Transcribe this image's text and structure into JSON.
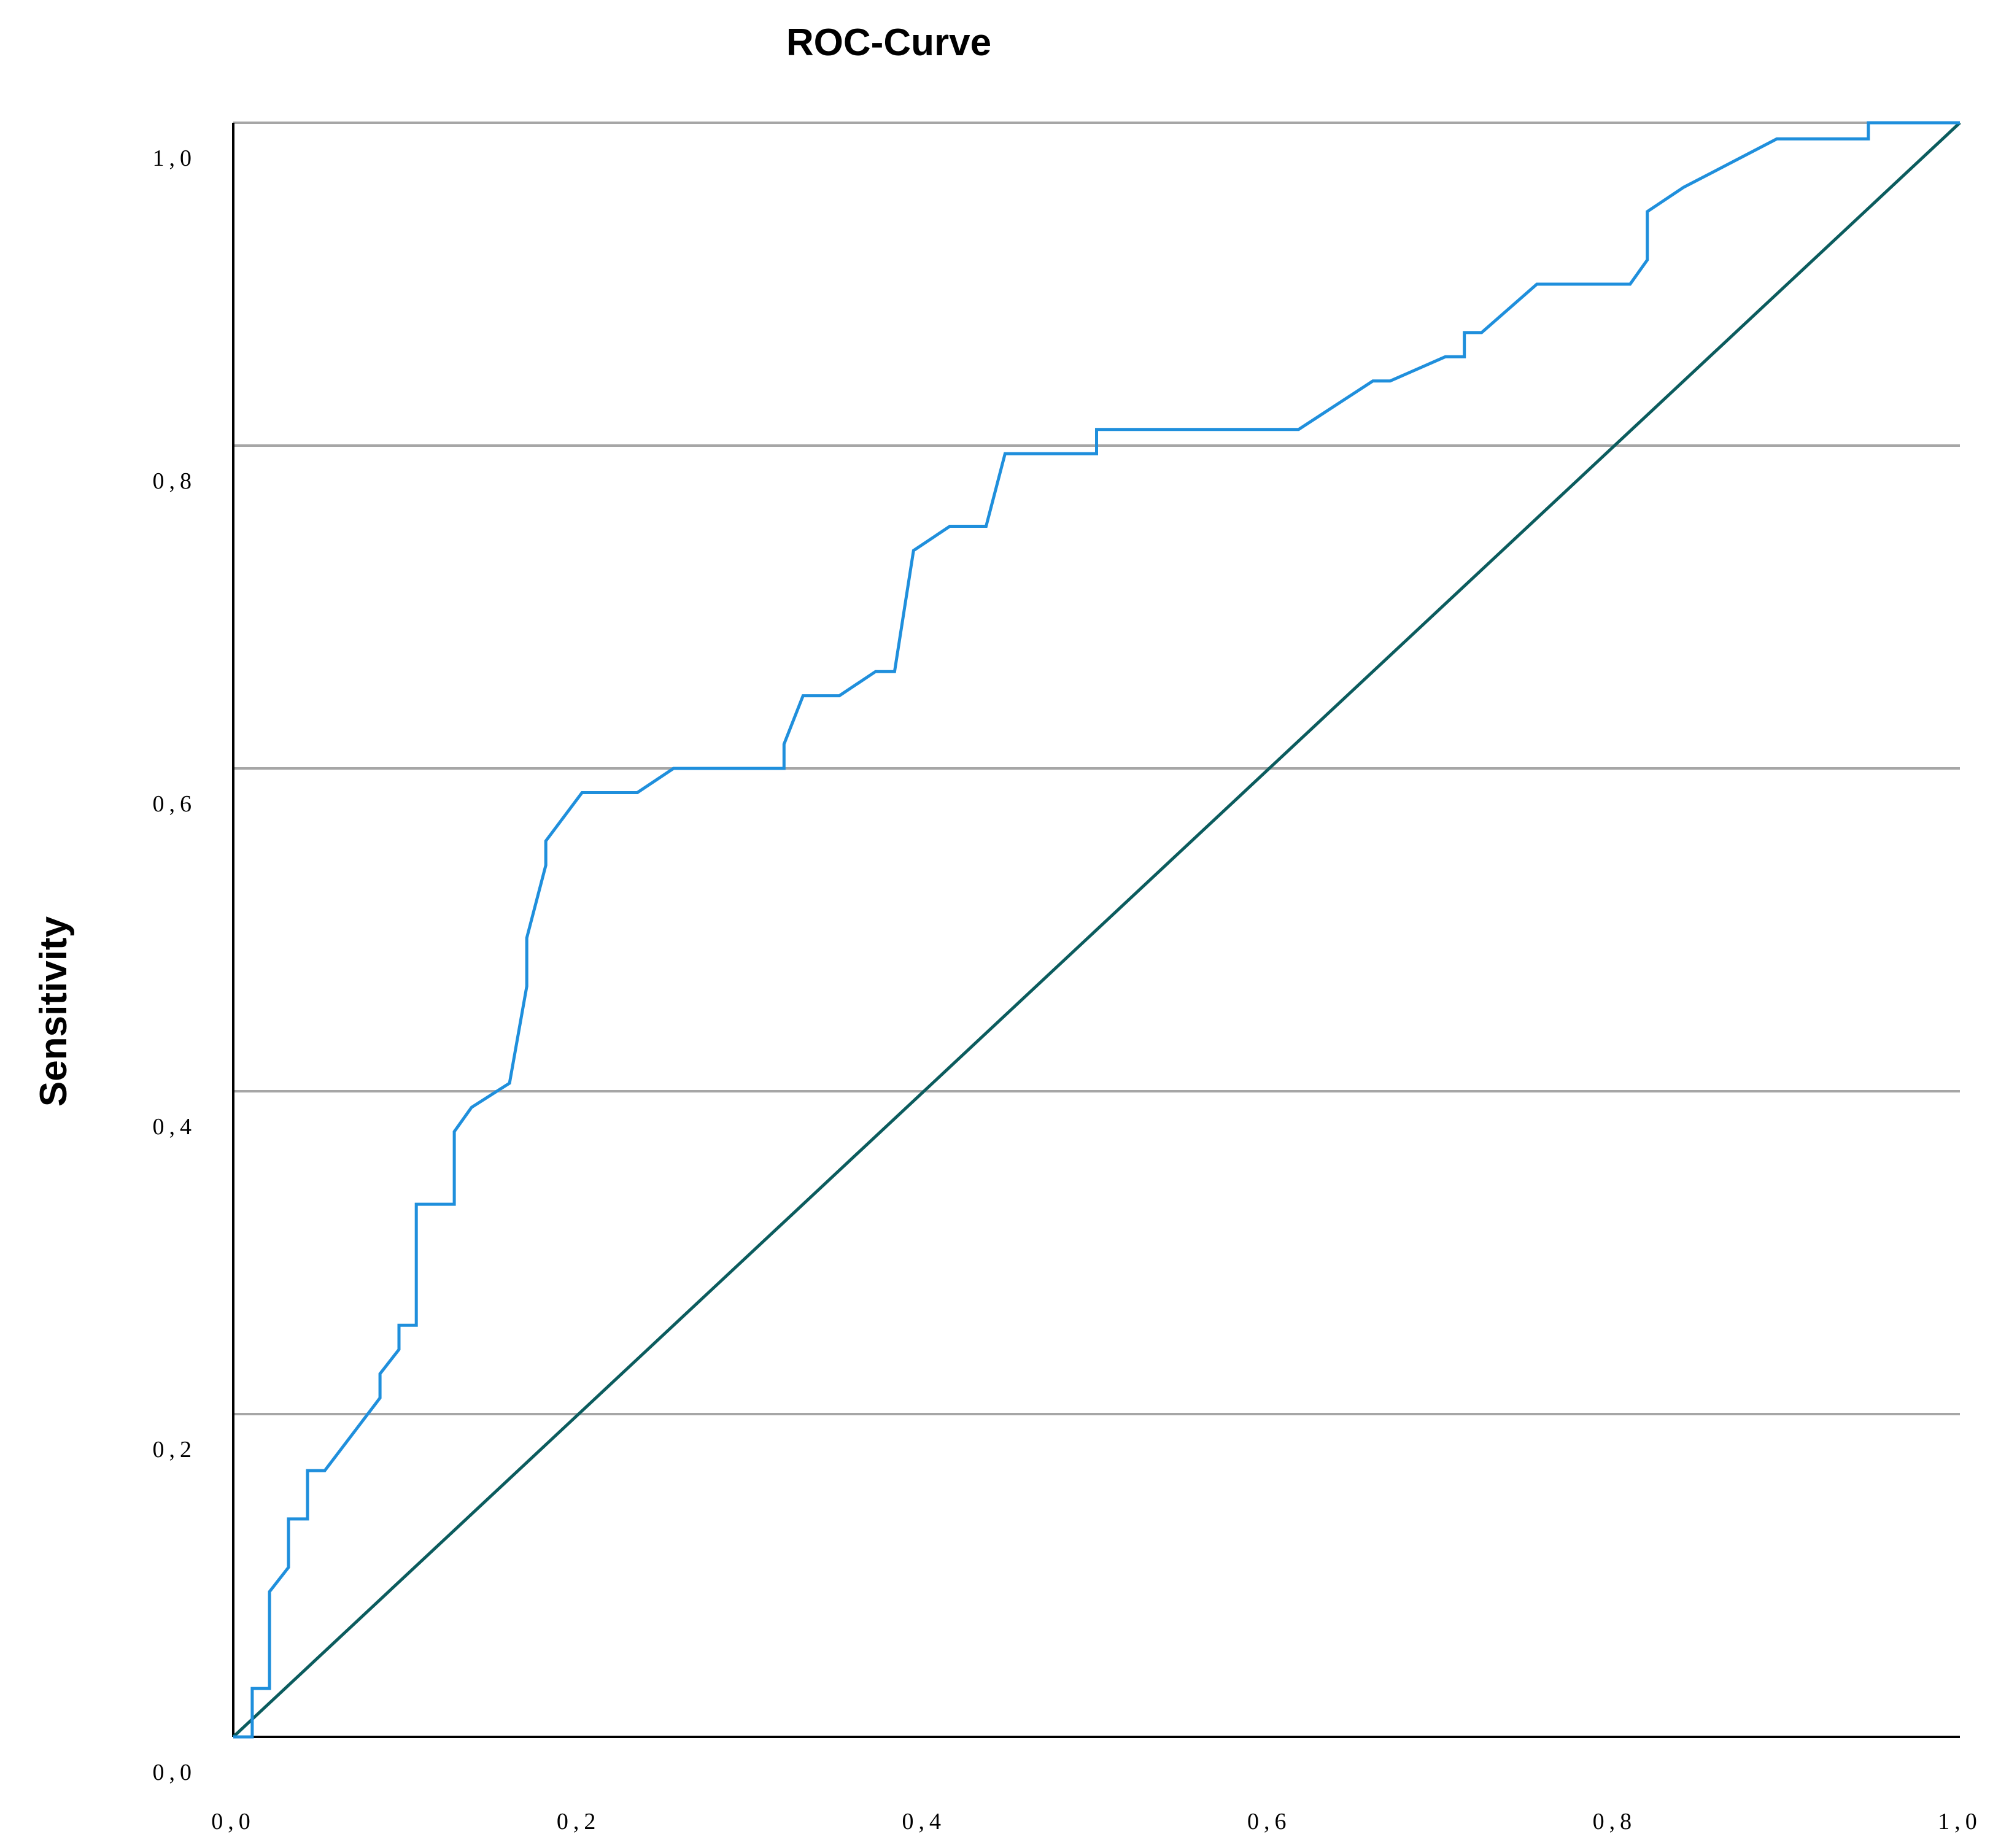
{
  "chart_data": {
    "type": "line",
    "title": "ROC-Curve",
    "xlabel": "",
    "ylabel": "Sensitivity",
    "xlim": [
      0,
      1
    ],
    "ylim": [
      0,
      1
    ],
    "grid": "horizontal",
    "x_tick_labels": [
      "0,0",
      "0,2",
      "0,4",
      "0,6",
      "0,8",
      "1,0"
    ],
    "y_tick_labels": [
      "0,0",
      "0,2",
      "0,4",
      "0,6",
      "0,8",
      "1,0"
    ],
    "ticks": [
      0,
      0.2,
      0.4,
      0.6,
      0.8,
      1.0
    ],
    "colors": {
      "roc": "#1f8fdc",
      "reference": "#0b5c5e",
      "grid": "#a6a6a6"
    },
    "series": [
      {
        "points": [
          [
            0,
            0
          ],
          [
            0.011,
            0
          ],
          [
            0.011,
            0.03
          ],
          [
            0.021,
            0.03
          ],
          [
            0.021,
            0.09
          ],
          [
            0.032,
            0.105
          ],
          [
            0.032,
            0.135
          ],
          [
            0.043,
            0.135
          ],
          [
            0.043,
            0.165
          ],
          [
            0.053,
            0.165
          ],
          [
            0.085,
            0.21
          ],
          [
            0.085,
            0.225
          ],
          [
            0.096,
            0.24
          ],
          [
            0.096,
            0.255
          ],
          [
            0.106,
            0.255
          ],
          [
            0.106,
            0.33
          ],
          [
            0.128,
            0.33
          ],
          [
            0.128,
            0.375
          ],
          [
            0.138,
            0.39
          ],
          [
            0.16,
            0.405
          ],
          [
            0.17,
            0.465
          ],
          [
            0.17,
            0.495
          ],
          [
            0.181,
            0.54
          ],
          [
            0.181,
            0.555
          ],
          [
            0.202,
            0.585
          ],
          [
            0.234,
            0.585
          ],
          [
            0.255,
            0.6
          ],
          [
            0.319,
            0.6
          ],
          [
            0.319,
            0.615
          ],
          [
            0.33,
            0.645
          ],
          [
            0.351,
            0.645
          ],
          [
            0.372,
            0.66
          ],
          [
            0.383,
            0.66
          ],
          [
            0.394,
            0.735
          ],
          [
            0.415,
            0.75
          ],
          [
            0.436,
            0.75
          ],
          [
            0.447,
            0.795
          ],
          [
            0.5,
            0.795
          ],
          [
            0.5,
            0.81
          ],
          [
            0.617,
            0.81
          ],
          [
            0.66,
            0.84
          ],
          [
            0.67,
            0.84
          ],
          [
            0.702,
            0.855
          ],
          [
            0.713,
            0.855
          ],
          [
            0.713,
            0.87
          ],
          [
            0.723,
            0.87
          ],
          [
            0.755,
            0.9
          ],
          [
            0.809,
            0.9
          ],
          [
            0.819,
            0.915
          ],
          [
            0.819,
            0.945
          ],
          [
            0.84,
            0.96
          ],
          [
            0.894,
            0.99
          ],
          [
            0.947,
            0.99
          ],
          [
            0.947,
            1.0
          ],
          [
            1.0,
            1.0
          ]
        ]
      },
      {
        "points": [
          [
            0,
            0
          ],
          [
            1,
            1
          ]
        ]
      }
    ]
  }
}
